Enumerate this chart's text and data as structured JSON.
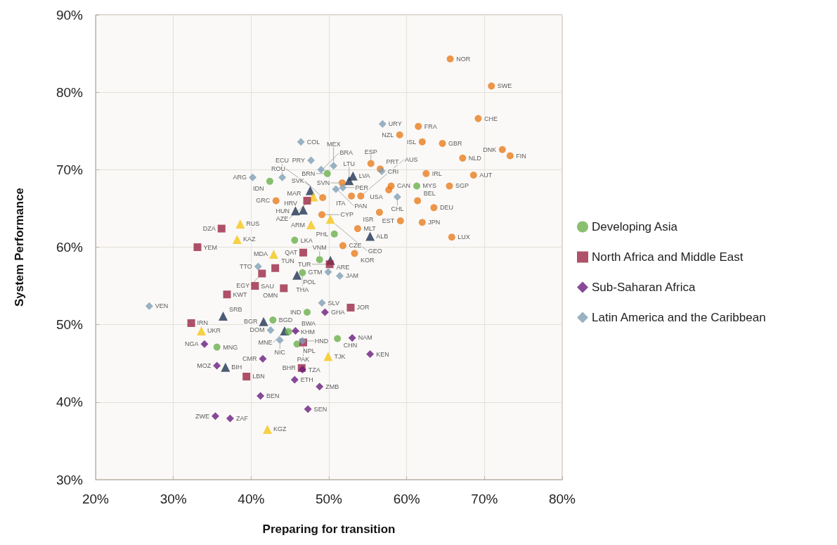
{
  "chart_data": {
    "type": "scatter",
    "xlabel": "Preparing for transition",
    "ylabel": "System Performance",
    "xlim": [
      20,
      80
    ],
    "ylim": [
      30,
      90
    ],
    "xticks": [
      {
        "value": 20,
        "label": "20%"
      },
      {
        "value": 30,
        "label": "30%"
      },
      {
        "value": 40,
        "label": "40%"
      },
      {
        "value": 50,
        "label": "50%"
      },
      {
        "value": 60,
        "label": "60%"
      },
      {
        "value": 70,
        "label": "70%"
      },
      {
        "value": 80,
        "label": "80%"
      }
    ],
    "yticks": [
      {
        "value": 30,
        "label": "30%"
      },
      {
        "value": 40,
        "label": "40%"
      },
      {
        "value": 50,
        "label": "50%"
      },
      {
        "value": 60,
        "label": "60%"
      },
      {
        "value": 70,
        "label": "70%"
      },
      {
        "value": 80,
        "label": "80%"
      },
      {
        "value": 90,
        "label": "90%"
      }
    ],
    "grid": true,
    "legend": "right",
    "series": [
      {
        "color": "#e87d1e",
        "marker": "circle",
        "x": [
          65.6,
          70.9,
          69.2,
          61.5,
          59.1,
          62.0,
          64.6,
          72.3,
          73.3,
          67.2,
          55.4,
          56.6,
          62.5,
          68.6,
          58.0,
          57.7,
          65.5,
          51.7,
          52.9,
          54.1,
          49.2,
          49.1,
          53.7,
          56.5,
          63.5,
          59.2,
          62.0,
          65.8,
          61.4,
          53.3,
          51.8,
          43.2
        ],
        "values": [
          84.3,
          80.8,
          76.6,
          75.6,
          74.5,
          73.6,
          73.4,
          72.6,
          71.8,
          71.5,
          70.8,
          70.1,
          69.5,
          69.3,
          67.9,
          67.4,
          67.9,
          68.3,
          66.6,
          66.6,
          66.4,
          64.2,
          62.4,
          64.5,
          65.1,
          63.4,
          63.2,
          61.3,
          66.0,
          59.2,
          60.2,
          66.0
        ],
        "value_labels": [
          "NOR",
          "SWE",
          "CHE",
          "FRA",
          "NZL",
          "ISL",
          "GBR",
          "DNK",
          "FIN",
          "NLD",
          "ESP",
          "PRT",
          "IRL",
          "AUT",
          "CAN",
          "USA",
          "SGP",
          "SVN",
          "ITA",
          "AUS",
          "SVK",
          "CYP",
          "MLT",
          "ISR",
          "DEU",
          "EST",
          "JPN",
          "LUX",
          "BEL",
          "KOR",
          "CZE",
          "GRC"
        ]
      },
      {
        "color": "#1f3453",
        "marker": "triangle",
        "x": [
          47.6,
          45.7,
          46.7,
          52.6,
          53.1,
          45.9,
          50.2,
          55.3,
          36.4,
          41.6,
          44.3,
          36.7
        ],
        "values": [
          67.3,
          64.7,
          64.8,
          68.6,
          69.2,
          56.4,
          58.3,
          61.4,
          51.1,
          50.4,
          49.2,
          44.5
        ],
        "value_labels": [
          "ROU",
          "HUN",
          "HRV",
          "LTU",
          "LVA",
          "POL",
          "ARE",
          "ALB",
          "SRB",
          "BGR",
          "MNE",
          "BIH"
        ]
      },
      {
        "color": "#f5c518",
        "marker": "triangle",
        "x": [
          48.0,
          38.6,
          38.2,
          47.7,
          50.2,
          42.9,
          33.6,
          49.9,
          42.1
        ],
        "values": [
          66.5,
          63.0,
          61.0,
          62.9,
          63.6,
          59.1,
          49.2,
          45.9,
          36.5
        ],
        "value_labels": [
          "AZE",
          "RUS",
          "KAZ",
          "ARM",
          "GEO",
          "MDA",
          "UKR",
          "TJK",
          "KGZ"
        ]
      },
      {
        "name": "Developing Asia",
        "color": "#6ab04c",
        "marker": "circle",
        "x": [
          42.4,
          49.8,
          61.3,
          45.6,
          48.8,
          46.6,
          50.7,
          47.2,
          42.8,
          44.8,
          45.9,
          35.6,
          51.1
        ],
        "values": [
          68.5,
          69.5,
          67.9,
          60.9,
          58.4,
          56.7,
          61.7,
          51.6,
          50.6,
          49.1,
          47.5,
          47.1,
          48.2
        ],
        "value_labels": [
          "IDN",
          "BRN",
          "MYS",
          "LKA",
          "VNM",
          "THA",
          "PHL",
          "IND",
          "BGD",
          "KHM",
          "NPL",
          "MNG",
          "CHN"
        ]
      },
      {
        "name": "North Africa and Middle East",
        "color": "#9b2743",
        "marker": "square",
        "x": [
          47.2,
          36.2,
          33.1,
          46.7,
          43.1,
          41.4,
          40.5,
          44.2,
          36.9,
          50.1,
          52.8,
          32.3,
          46.7,
          46.5,
          39.4
        ],
        "values": [
          66.0,
          62.4,
          60.0,
          59.3,
          57.3,
          56.6,
          55.0,
          54.7,
          53.9,
          57.8,
          52.2,
          50.2,
          47.7,
          44.4,
          43.3
        ],
        "value_labels": [
          "MAR",
          "DZA",
          "YEM",
          "QAT",
          "TUN",
          "EGY",
          "SAU",
          "OMN",
          "KWT",
          "TUR",
          "JOR",
          "IRN",
          "PAK",
          "BHR",
          "LBN"
        ]
      },
      {
        "name": "Sub-Saharan Africa",
        "color": "#6a1b7f",
        "marker": "diamond",
        "x": [
          49.5,
          45.7,
          34.0,
          53.0,
          55.3,
          41.5,
          35.6,
          46.6,
          45.6,
          48.8,
          41.2,
          47.3,
          35.4,
          37.3
        ],
        "values": [
          51.6,
          49.2,
          47.5,
          48.3,
          46.2,
          45.6,
          44.7,
          44.2,
          42.9,
          42.0,
          40.8,
          39.1,
          38.2,
          37.9
        ],
        "value_labels": [
          "GHA",
          "BWA",
          "NGA",
          "NAM",
          "KEN",
          "CMR",
          "MOZ",
          "TZA",
          "ETH",
          "ZMB",
          "BEN",
          "SEN",
          "ZWE",
          "ZAF"
        ]
      },
      {
        "name": "Latin America and the Caribbean",
        "color": "#7f9fb5",
        "marker": "diamond",
        "x": [
          46.4,
          47.7,
          49.0,
          40.2,
          44.0,
          56.9,
          50.6,
          50.9,
          51.8,
          56.8,
          58.8,
          40.9,
          49.9,
          51.4,
          26.9,
          49.1,
          42.5,
          43.7,
          46.6
        ],
        "values": [
          73.6,
          71.2,
          70.0,
          69.0,
          69.0,
          75.9,
          70.5,
          67.5,
          67.7,
          69.8,
          66.5,
          57.5,
          56.8,
          56.3,
          52.4,
          52.8,
          49.3,
          48.0,
          47.9
        ],
        "value_labels": [
          "COL",
          "PRY",
          "BRA",
          "ARG",
          "ECU",
          "URY",
          "MEX",
          "PAN",
          "PER",
          "CRI",
          "CHL",
          "TTO",
          "GTM",
          "JAM",
          "VEN",
          "SLV",
          "DOM",
          "NIC",
          "HND"
        ]
      }
    ]
  }
}
